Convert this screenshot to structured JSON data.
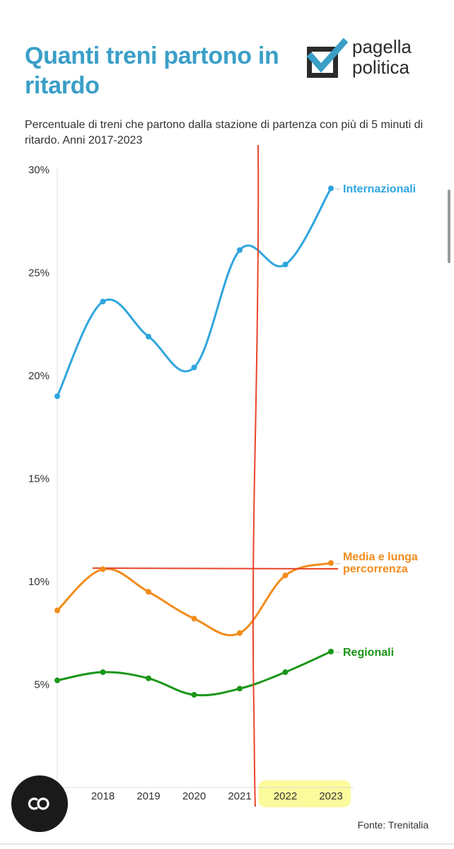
{
  "header": {
    "title": "Quanti treni partono in ritardo",
    "subtitle": "Percentuale di treni che partono dalla stazione di partenza con più di 5 minuti di ritardo. Anni 2017-2023",
    "logo_line1": "pagella",
    "logo_line2": "politica"
  },
  "chart_data": {
    "type": "line",
    "title": "Quanti treni partono in ritardo",
    "subtitle": "Percentuale di treni che partono dalla stazione di partenza con più di 5 minuti di ritardo. Anni 2017-2023",
    "x": [
      2017,
      2018,
      2019,
      2020,
      2021,
      2022,
      2023
    ],
    "x_tick_labels": [
      "17",
      "2018",
      "2019",
      "2020",
      "2021",
      "2022",
      "2023"
    ],
    "y_tick_labels": [
      "5%",
      "10%",
      "15%",
      "20%",
      "25%",
      "30%"
    ],
    "ylim": [
      0,
      30
    ],
    "grid": false,
    "series": [
      {
        "name": "Internazionali",
        "color": "#2fa5de",
        "values": [
          19.0,
          23.6,
          21.9,
          20.4,
          26.1,
          25.4,
          29.1
        ]
      },
      {
        "name": "Media e lunga percorrenza",
        "label_lines": [
          "Media e lunga",
          "percorrenza"
        ],
        "color": "#f28c1c",
        "values": [
          8.6,
          10.6,
          9.5,
          8.2,
          7.5,
          10.3,
          10.9
        ]
      },
      {
        "name": "Regionali",
        "color": "#1a9619",
        "values": [
          5.2,
          5.6,
          5.3,
          4.5,
          4.8,
          5.6,
          6.6
        ]
      }
    ],
    "annotations": {
      "vertical_line_color": "#e8442a",
      "horizontal_line_color": "#e8442a",
      "highlight_color": "#fbfa9c",
      "highlighted_years": [
        2022,
        2023
      ]
    }
  },
  "source": "Fonte: Trenitalia",
  "fab": {
    "icon": "infinity-icon"
  }
}
